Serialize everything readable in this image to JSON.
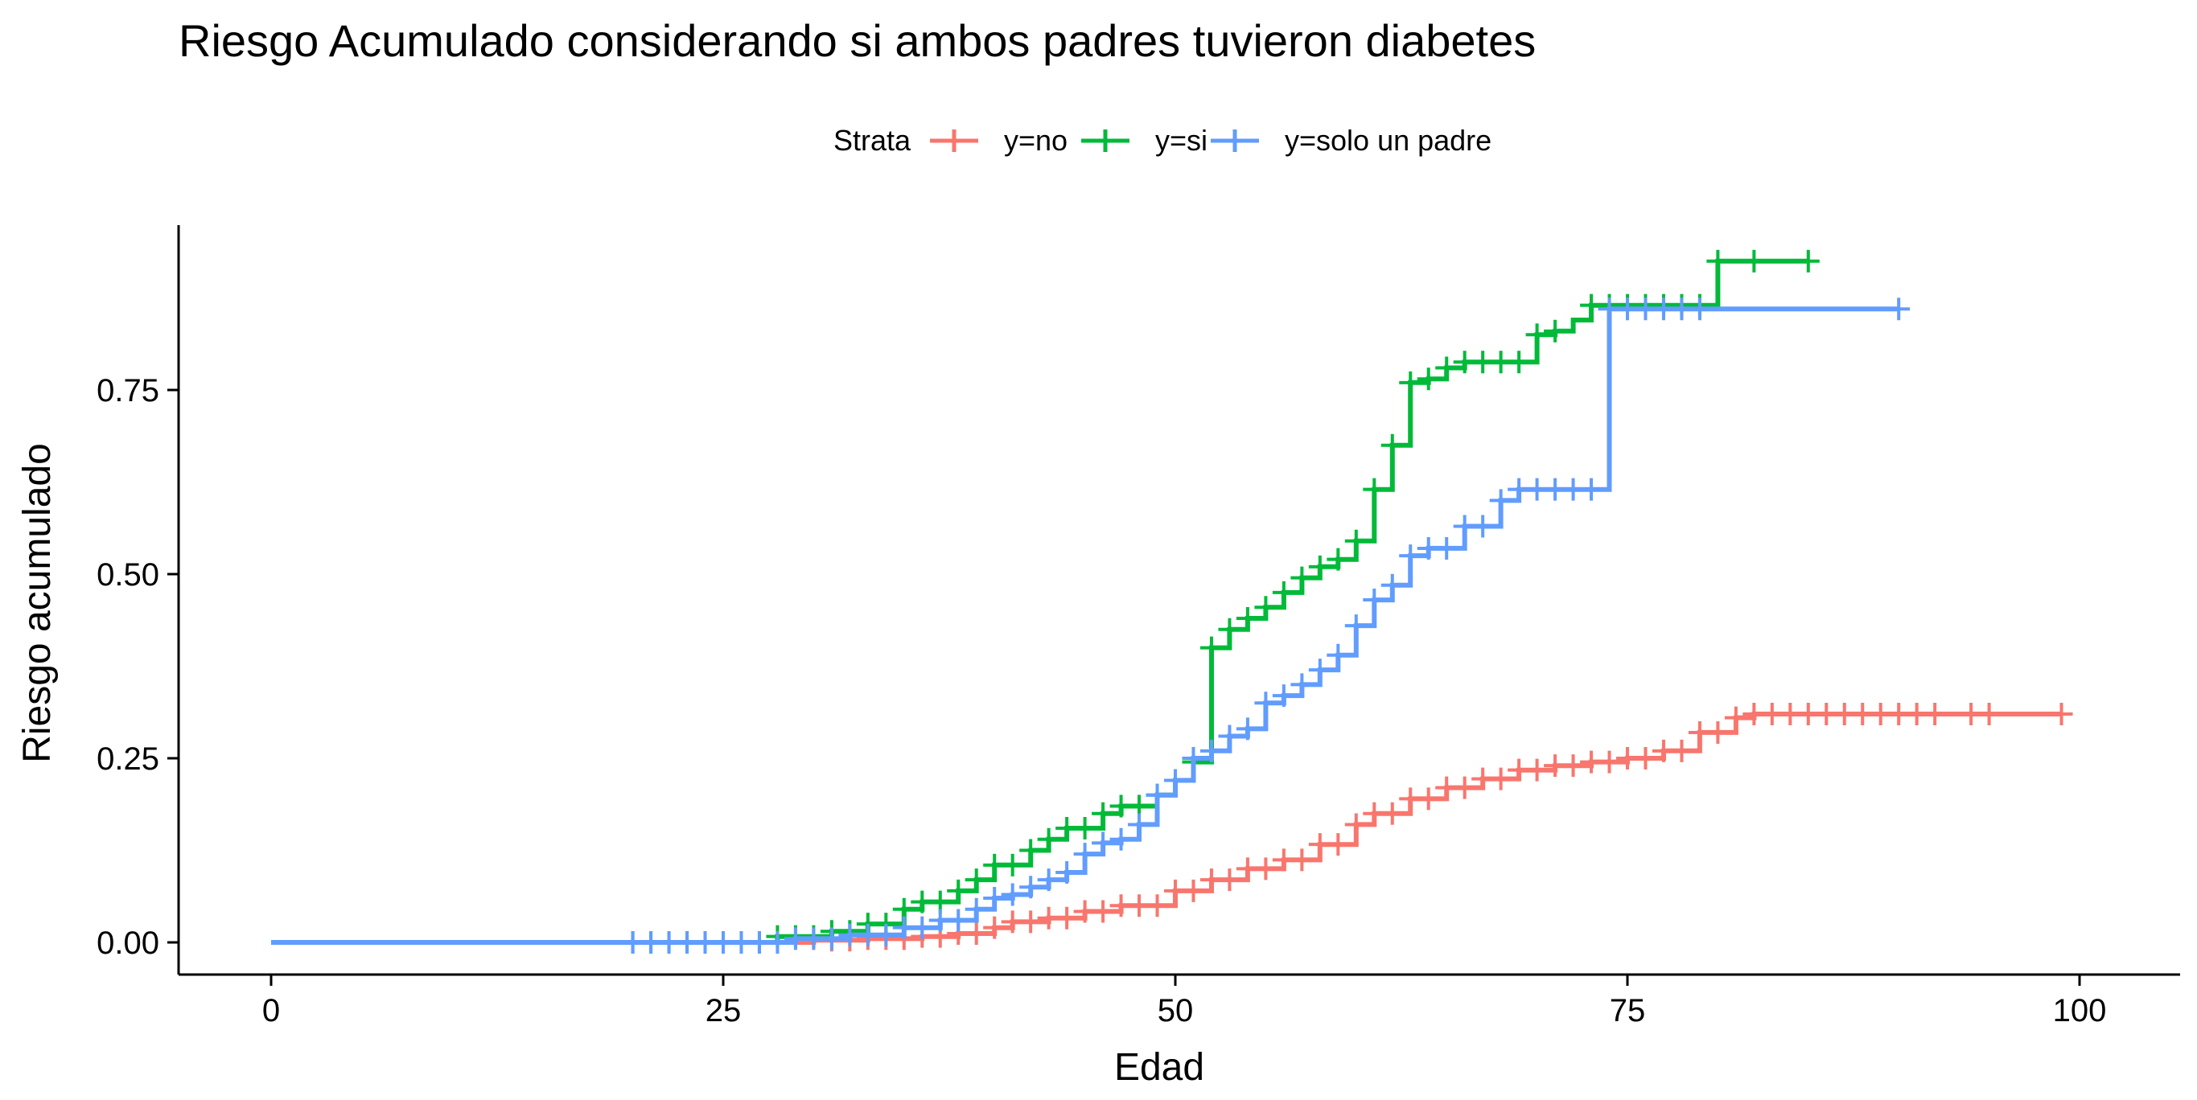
{
  "chart_data": {
    "type": "line",
    "subtype": "step",
    "title": "Riesgo Acumulado considerando si ambos padres tuvieron diabetes",
    "xlabel": "Edad",
    "ylabel": "Riesgo acumulado",
    "xlim": [
      0,
      100
    ],
    "ylim": [
      0,
      0.9
    ],
    "xticks": [
      0,
      25,
      50,
      75,
      100
    ],
    "xtick_labels": [
      "0",
      "25",
      "50",
      "75",
      "100"
    ],
    "yticks": [
      0,
      0.25,
      0.5,
      0.75
    ],
    "ytick_labels": [
      "0.00",
      "0.25",
      "0.50",
      "0.75"
    ],
    "grid": false,
    "legend": {
      "title": "Strata",
      "placement": "top",
      "entries": [
        "y=no",
        "y=si",
        "y=solo un padre"
      ]
    },
    "series": [
      {
        "name": "y=no",
        "color": "#F8766D",
        "steps": [
          [
            0,
            0
          ],
          [
            30,
            0.003
          ],
          [
            33,
            0.005
          ],
          [
            36,
            0.008
          ],
          [
            38,
            0.012
          ],
          [
            40,
            0.02
          ],
          [
            41,
            0.028
          ],
          [
            43,
            0.033
          ],
          [
            45,
            0.042
          ],
          [
            47,
            0.05
          ],
          [
            50,
            0.07
          ],
          [
            52,
            0.085
          ],
          [
            54,
            0.1
          ],
          [
            56,
            0.112
          ],
          [
            58,
            0.133
          ],
          [
            60,
            0.16
          ],
          [
            61,
            0.175
          ],
          [
            63,
            0.195
          ],
          [
            65,
            0.21
          ],
          [
            67,
            0.222
          ],
          [
            69,
            0.234
          ],
          [
            71,
            0.24
          ],
          [
            73,
            0.245
          ],
          [
            75,
            0.25
          ],
          [
            77,
            0.26
          ],
          [
            79,
            0.285
          ],
          [
            81,
            0.305
          ],
          [
            82,
            0.31
          ],
          [
            99,
            0.31
          ]
        ],
        "censor_x": [
          31,
          32,
          33,
          34,
          35,
          36,
          37,
          38,
          39,
          40,
          41,
          42,
          43,
          44,
          45,
          46,
          47,
          48,
          49,
          50,
          51,
          52,
          53,
          54,
          55,
          56,
          57,
          58,
          59,
          60,
          61,
          62,
          63,
          64,
          65,
          66,
          67,
          68,
          69,
          70,
          71,
          72,
          73,
          74,
          75,
          76,
          77,
          78,
          79,
          80,
          81,
          82,
          83,
          84,
          85,
          86,
          87,
          88,
          89,
          90,
          91,
          92,
          94,
          95,
          99
        ]
      },
      {
        "name": "y=si",
        "color": "#00BA38",
        "steps": [
          [
            0,
            0
          ],
          [
            28,
            0.008
          ],
          [
            31,
            0.015
          ],
          [
            33,
            0.025
          ],
          [
            35,
            0.045
          ],
          [
            36,
            0.055
          ],
          [
            38,
            0.07
          ],
          [
            39,
            0.085
          ],
          [
            40,
            0.105
          ],
          [
            42,
            0.125
          ],
          [
            43,
            0.14
          ],
          [
            44,
            0.155
          ],
          [
            46,
            0.175
          ],
          [
            47,
            0.185
          ],
          [
            49,
            0.2
          ],
          [
            50,
            0.22
          ],
          [
            51,
            0.245
          ],
          [
            52,
            0.4
          ],
          [
            53,
            0.425
          ],
          [
            54,
            0.44
          ],
          [
            55,
            0.455
          ],
          [
            56,
            0.475
          ],
          [
            57,
            0.495
          ],
          [
            58,
            0.51
          ],
          [
            59,
            0.52
          ],
          [
            60,
            0.545
          ],
          [
            61,
            0.615
          ],
          [
            62,
            0.675
          ],
          [
            63,
            0.76
          ],
          [
            64,
            0.765
          ],
          [
            65,
            0.78
          ],
          [
            66,
            0.788
          ],
          [
            70,
            0.825
          ],
          [
            71,
            0.83
          ],
          [
            72,
            0.845
          ],
          [
            73,
            0.865
          ],
          [
            80,
            0.925
          ],
          [
            85,
            0.925
          ]
        ],
        "censor_x": [
          20,
          21,
          22,
          23,
          24,
          25,
          26,
          27,
          28,
          29,
          30,
          31,
          32,
          33,
          34,
          35,
          36,
          37,
          38,
          39,
          40,
          41,
          42,
          43,
          44,
          45,
          46,
          47,
          48,
          49,
          50,
          51,
          52,
          53,
          54,
          55,
          56,
          57,
          58,
          59,
          60,
          61,
          62,
          63,
          64,
          65,
          66,
          67,
          68,
          69,
          70,
          71,
          73,
          74,
          75,
          76,
          77,
          78,
          79,
          80,
          82,
          85
        ]
      },
      {
        "name": "y=solo un padre",
        "color": "#619CFF",
        "steps": [
          [
            0,
            0
          ],
          [
            29,
            0.005
          ],
          [
            32,
            0.01
          ],
          [
            35,
            0.02
          ],
          [
            37,
            0.03
          ],
          [
            39,
            0.045
          ],
          [
            40,
            0.06
          ],
          [
            41,
            0.065
          ],
          [
            42,
            0.075
          ],
          [
            43,
            0.085
          ],
          [
            44,
            0.095
          ],
          [
            45,
            0.12
          ],
          [
            46,
            0.135
          ],
          [
            47,
            0.14
          ],
          [
            48,
            0.16
          ],
          [
            49,
            0.2
          ],
          [
            50,
            0.22
          ],
          [
            51,
            0.25
          ],
          [
            52,
            0.26
          ],
          [
            53,
            0.28
          ],
          [
            54,
            0.29
          ],
          [
            55,
            0.325
          ],
          [
            56,
            0.335
          ],
          [
            57,
            0.35
          ],
          [
            58,
            0.37
          ],
          [
            59,
            0.39
          ],
          [
            60,
            0.43
          ],
          [
            61,
            0.465
          ],
          [
            62,
            0.485
          ],
          [
            63,
            0.525
          ],
          [
            64,
            0.535
          ],
          [
            66,
            0.565
          ],
          [
            68,
            0.6
          ],
          [
            69,
            0.615
          ],
          [
            74,
            0.86
          ],
          [
            90,
            0.86
          ]
        ],
        "censor_x": [
          20,
          21,
          22,
          23,
          24,
          25,
          26,
          27,
          28,
          29,
          30,
          31,
          32,
          33,
          34,
          35,
          36,
          37,
          38,
          39,
          40,
          41,
          42,
          43,
          44,
          45,
          46,
          47,
          48,
          49,
          50,
          51,
          52,
          53,
          54,
          55,
          56,
          57,
          58,
          59,
          60,
          61,
          62,
          63,
          64,
          65,
          66,
          67,
          68,
          69,
          70,
          71,
          72,
          73,
          74,
          75,
          76,
          77,
          78,
          79,
          90
        ]
      }
    ]
  }
}
